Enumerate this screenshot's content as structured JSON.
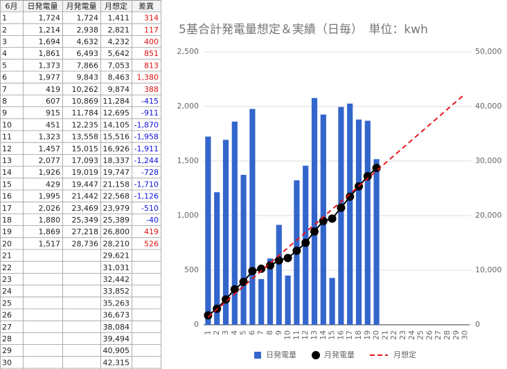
{
  "table": {
    "header": [
      "6月",
      "日発電量",
      "月発電量",
      "月想定",
      "差異"
    ],
    "rows": [
      [
        "1",
        "1,724",
        "1,724",
        "1,411",
        "314"
      ],
      [
        "2",
        "1,214",
        "2,938",
        "2,821",
        "117"
      ],
      [
        "3",
        "1,694",
        "4,632",
        "4,232",
        "400"
      ],
      [
        "4",
        "1,861",
        "6,493",
        "5,642",
        "851"
      ],
      [
        "5",
        "1,373",
        "7,866",
        "7,053",
        "813"
      ],
      [
        "6",
        "1,977",
        "9,843",
        "8,463",
        "1,380"
      ],
      [
        "7",
        "419",
        "10,262",
        "9,874",
        "388"
      ],
      [
        "8",
        "607",
        "10,869",
        "11,284",
        "-415"
      ],
      [
        "9",
        "915",
        "11,784",
        "12,695",
        "-911"
      ],
      [
        "10",
        "451",
        "12,235",
        "14,105",
        "-1,870"
      ],
      [
        "11",
        "1,323",
        "13,558",
        "15,516",
        "-1,958"
      ],
      [
        "12",
        "1,457",
        "15,015",
        "16,926",
        "-1,911"
      ],
      [
        "13",
        "2,077",
        "17,093",
        "18,337",
        "-1,244"
      ],
      [
        "14",
        "1,926",
        "19,019",
        "19,747",
        "-728"
      ],
      [
        "15",
        "429",
        "19,447",
        "21,158",
        "-1,710"
      ],
      [
        "16",
        "1,995",
        "21,442",
        "22,568",
        "-1,126"
      ],
      [
        "17",
        "2,026",
        "23,469",
        "23,979",
        "-510"
      ],
      [
        "18",
        "1,880",
        "25,349",
        "25,389",
        "-40"
      ],
      [
        "19",
        "1,869",
        "27,218",
        "26,800",
        "419"
      ],
      [
        "20",
        "1,517",
        "28,736",
        "28,210",
        "526"
      ],
      [
        "21",
        null,
        null,
        "29,621",
        null
      ],
      [
        "22",
        null,
        null,
        "31,031",
        null
      ],
      [
        "23",
        null,
        null,
        "32,442",
        null
      ],
      [
        "24",
        null,
        null,
        "33,852",
        null
      ],
      [
        "25",
        null,
        null,
        "35,263",
        null
      ],
      [
        "26",
        null,
        null,
        "36,673",
        null
      ],
      [
        "27",
        null,
        null,
        "38,084",
        null
      ],
      [
        "28",
        null,
        null,
        "39,494",
        null
      ],
      [
        "29",
        null,
        null,
        "40,905",
        null
      ],
      [
        "30",
        null,
        null,
        "42,315",
        null
      ]
    ]
  },
  "chart_data": {
    "type": "combo",
    "title": "5基合計発電量想定＆実績（日毎）　単位：kwh",
    "categories": [
      "1",
      "2",
      "3",
      "4",
      "5",
      "6",
      "7",
      "8",
      "9",
      "10",
      "11",
      "12",
      "13",
      "14",
      "15",
      "16",
      "17",
      "18",
      "19",
      "20",
      "21",
      "22",
      "23",
      "24",
      "25",
      "26",
      "27",
      "28",
      "29",
      "30"
    ],
    "series": [
      {
        "name": "日発電量",
        "type": "bar",
        "color": "#3366cc",
        "values": [
          1724,
          1214,
          1694,
          1861,
          1373,
          1977,
          419,
          607,
          915,
          451,
          1323,
          1457,
          2077,
          1926,
          429,
          1995,
          2026,
          1880,
          1869,
          1517,
          null,
          null,
          null,
          null,
          null,
          null,
          null,
          null,
          null,
          null
        ]
      },
      {
        "name": "月発電量",
        "type": "line",
        "marker": true,
        "axis": "y2",
        "color": "#000000",
        "values": [
          1724,
          2938,
          4632,
          6493,
          7866,
          9843,
          10262,
          10869,
          11784,
          12235,
          13558,
          15015,
          17093,
          19019,
          19447,
          21442,
          23469,
          25349,
          27218,
          28736,
          null,
          null,
          null,
          null,
          null,
          null,
          null,
          null,
          null,
          null
        ]
      },
      {
        "name": "月想定",
        "type": "line",
        "dashed": true,
        "axis": "y2",
        "color": "#e8141a",
        "values": [
          1411,
          2821,
          4232,
          5642,
          7053,
          8463,
          9874,
          11284,
          12695,
          14105,
          15516,
          16926,
          18337,
          19747,
          21158,
          22568,
          23979,
          25389,
          26800,
          28210,
          29621,
          31031,
          32442,
          33852,
          35263,
          36673,
          38084,
          39494,
          40905,
          42315
        ]
      }
    ],
    "ylim": [
      0,
      2500
    ],
    "yticks": [
      0,
      500,
      {
        "value": 1000,
        "label": "1,000"
      },
      {
        "value": 1500,
        "label": "1,500"
      },
      {
        "value": 2000,
        "label": "2,000"
      },
      {
        "value": 2500,
        "label": "2,500"
      }
    ],
    "y2lim": [
      0,
      50000
    ],
    "y2ticks": [
      0,
      {
        "value": 10000,
        "label": "10,000"
      },
      {
        "value": 20000,
        "label": "20,000"
      },
      {
        "value": 30000,
        "label": "30,000"
      },
      {
        "value": 40000,
        "label": "40,000"
      },
      {
        "value": 50000,
        "label": "50,000"
      }
    ],
    "grid": true,
    "legend": "bottom"
  }
}
